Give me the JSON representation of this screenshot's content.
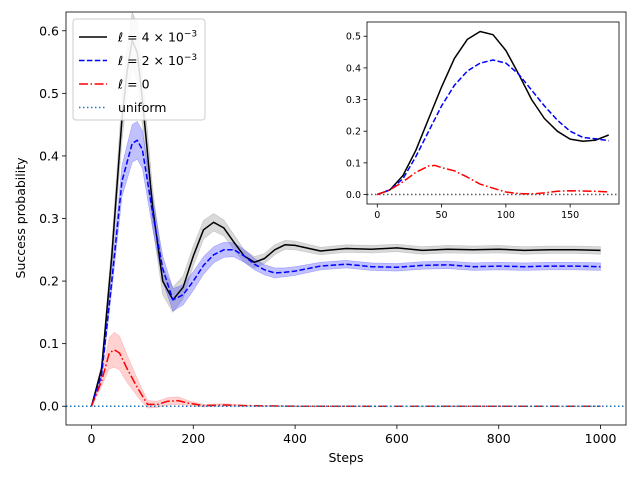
{
  "chart_data": {
    "type": "line",
    "title": "",
    "xlabel": "Steps",
    "ylabel": "Success probability",
    "xlim": [
      -50,
      1050
    ],
    "ylim": [
      -0.03,
      0.63
    ],
    "xticks": [
      0,
      200,
      400,
      600,
      800,
      1000
    ],
    "xtick_labels": [
      "0",
      "200",
      "400",
      "600",
      "800",
      "1000"
    ],
    "yticks": [
      0.0,
      0.1,
      0.2,
      0.3,
      0.4,
      0.5,
      0.6
    ],
    "ytick_labels": [
      "0.0",
      "0.1",
      "0.2",
      "0.3",
      "0.4",
      "0.5",
      "0.6"
    ],
    "legend_position": "top-left",
    "legend_style": {
      "uniform_math": false
    },
    "series": [
      {
        "name": "ℓ = 4×10⁻³",
        "label_main": "ℓ = 4 × 10",
        "label_exp": "−3",
        "color": "#000000",
        "style": "solid",
        "band_color": "#808080",
        "x": [
          0,
          20,
          40,
          60,
          70,
          80,
          90,
          100,
          120,
          140,
          160,
          180,
          200,
          220,
          240,
          260,
          280,
          300,
          320,
          340,
          360,
          380,
          400,
          450,
          500,
          550,
          600,
          650,
          700,
          750,
          800,
          850,
          900,
          950,
          1000
        ],
        "y": [
          0.0,
          0.06,
          0.24,
          0.46,
          0.535,
          0.585,
          0.565,
          0.49,
          0.32,
          0.2,
          0.17,
          0.19,
          0.24,
          0.282,
          0.294,
          0.285,
          0.262,
          0.24,
          0.23,
          0.236,
          0.25,
          0.258,
          0.257,
          0.248,
          0.252,
          0.251,
          0.253,
          0.249,
          0.251,
          0.25,
          0.251,
          0.249,
          0.25,
          0.25,
          0.249
        ],
        "band": [
          0.0,
          0.008,
          0.02,
          0.035,
          0.04,
          0.045,
          0.045,
          0.04,
          0.03,
          0.022,
          0.02,
          0.018,
          0.016,
          0.015,
          0.014,
          0.013,
          0.012,
          0.01,
          0.009,
          0.008,
          0.008,
          0.007,
          0.007,
          0.006,
          0.006,
          0.006,
          0.006,
          0.006,
          0.006,
          0.006,
          0.006,
          0.006,
          0.006,
          0.006,
          0.006
        ]
      },
      {
        "name": "ℓ = 2×10⁻³",
        "label_main": "ℓ = 2 × 10",
        "label_exp": "−3",
        "color": "#0000ff",
        "style": "dashed",
        "band_color": "#3333ff",
        "x": [
          0,
          20,
          40,
          60,
          80,
          90,
          100,
          120,
          140,
          160,
          180,
          200,
          220,
          240,
          260,
          280,
          300,
          320,
          340,
          360,
          380,
          400,
          450,
          500,
          550,
          600,
          650,
          700,
          750,
          800,
          850,
          900,
          950,
          1000
        ],
        "y": [
          0.0,
          0.05,
          0.2,
          0.36,
          0.42,
          0.425,
          0.41,
          0.31,
          0.22,
          0.17,
          0.178,
          0.2,
          0.225,
          0.242,
          0.25,
          0.25,
          0.24,
          0.227,
          0.218,
          0.213,
          0.214,
          0.216,
          0.224,
          0.227,
          0.223,
          0.222,
          0.225,
          0.226,
          0.223,
          0.224,
          0.223,
          0.224,
          0.224,
          0.223
        ],
        "band": [
          0.0,
          0.006,
          0.015,
          0.025,
          0.03,
          0.03,
          0.03,
          0.025,
          0.02,
          0.018,
          0.016,
          0.015,
          0.014,
          0.013,
          0.012,
          0.011,
          0.01,
          0.009,
          0.008,
          0.008,
          0.007,
          0.007,
          0.006,
          0.006,
          0.006,
          0.006,
          0.006,
          0.006,
          0.006,
          0.006,
          0.006,
          0.006,
          0.006,
          0.006
        ]
      },
      {
        "name": "ℓ = 0",
        "label_main": "ℓ = 0",
        "label_exp": "",
        "color": "#ff0000",
        "style": "dashdot",
        "band_color": "#ff6666",
        "x": [
          0,
          20,
          35,
          45,
          55,
          70,
          90,
          110,
          130,
          150,
          170,
          190,
          220,
          260,
          300,
          400,
          500,
          600,
          700,
          800,
          900,
          1000
        ],
        "y": [
          0.0,
          0.04,
          0.085,
          0.09,
          0.085,
          0.06,
          0.03,
          0.003,
          0.003,
          0.008,
          0.009,
          0.005,
          0.001,
          0.002,
          0.001,
          0.0,
          0.0,
          0.0,
          0.0,
          0.0,
          0.0,
          0.0
        ],
        "band": [
          0.0,
          0.008,
          0.025,
          0.028,
          0.027,
          0.022,
          0.014,
          0.006,
          0.005,
          0.006,
          0.006,
          0.004,
          0.002,
          0.002,
          0.001,
          0.0,
          0.0,
          0.0,
          0.0,
          0.0,
          0.0,
          0.0
        ]
      },
      {
        "name": "uniform",
        "label_main": "uniform",
        "label_exp": "",
        "color": "#1f77b4",
        "style": "dotted",
        "x": [
          -50,
          1050
        ],
        "y": [
          0.0,
          0.0
        ]
      }
    ],
    "inset": {
      "xlim": [
        -8,
        188
      ],
      "ylim": [
        -0.03,
        0.545
      ],
      "xticks": [
        0,
        50,
        100,
        150
      ],
      "xtick_labels": [
        "0",
        "50",
        "100",
        "150"
      ],
      "yticks": [
        0.0,
        0.1,
        0.2,
        0.3,
        0.4,
        0.5
      ],
      "ytick_labels": [
        "0.0",
        "0.1",
        "0.2",
        "0.3",
        "0.4",
        "0.5"
      ],
      "series": [
        {
          "name": "ℓ = 4×10⁻³",
          "color": "#000000",
          "style": "solid",
          "x": [
            0,
            10,
            20,
            30,
            40,
            50,
            60,
            70,
            80,
            90,
            100,
            110,
            120,
            130,
            140,
            150,
            160,
            170,
            180
          ],
          "y": [
            0.0,
            0.015,
            0.06,
            0.14,
            0.24,
            0.34,
            0.43,
            0.49,
            0.515,
            0.505,
            0.455,
            0.38,
            0.3,
            0.24,
            0.2,
            0.175,
            0.168,
            0.172,
            0.188
          ]
        },
        {
          "name": "ℓ = 2×10⁻³",
          "color": "#0000ff",
          "style": "dashed",
          "x": [
            0,
            10,
            20,
            30,
            40,
            50,
            60,
            70,
            80,
            90,
            100,
            110,
            120,
            130,
            140,
            150,
            160,
            170,
            180
          ],
          "y": [
            0.0,
            0.015,
            0.05,
            0.12,
            0.2,
            0.28,
            0.345,
            0.39,
            0.415,
            0.425,
            0.415,
            0.38,
            0.33,
            0.28,
            0.235,
            0.2,
            0.18,
            0.176,
            0.17
          ]
        },
        {
          "name": "ℓ = 0",
          "color": "#ff0000",
          "style": "dashdot",
          "x": [
            0,
            10,
            20,
            30,
            40,
            45,
            50,
            60,
            70,
            80,
            90,
            100,
            110,
            120,
            130,
            140,
            150,
            160,
            170,
            180
          ],
          "y": [
            0.0,
            0.015,
            0.04,
            0.07,
            0.09,
            0.092,
            0.085,
            0.075,
            0.055,
            0.033,
            0.02,
            0.008,
            0.003,
            0.002,
            0.005,
            0.01,
            0.012,
            0.011,
            0.01,
            0.008
          ]
        },
        {
          "name": "uniform",
          "color": "#555555",
          "style": "dotted",
          "x": [
            -8,
            188
          ],
          "y": [
            0.0,
            0.0
          ]
        }
      ]
    }
  }
}
